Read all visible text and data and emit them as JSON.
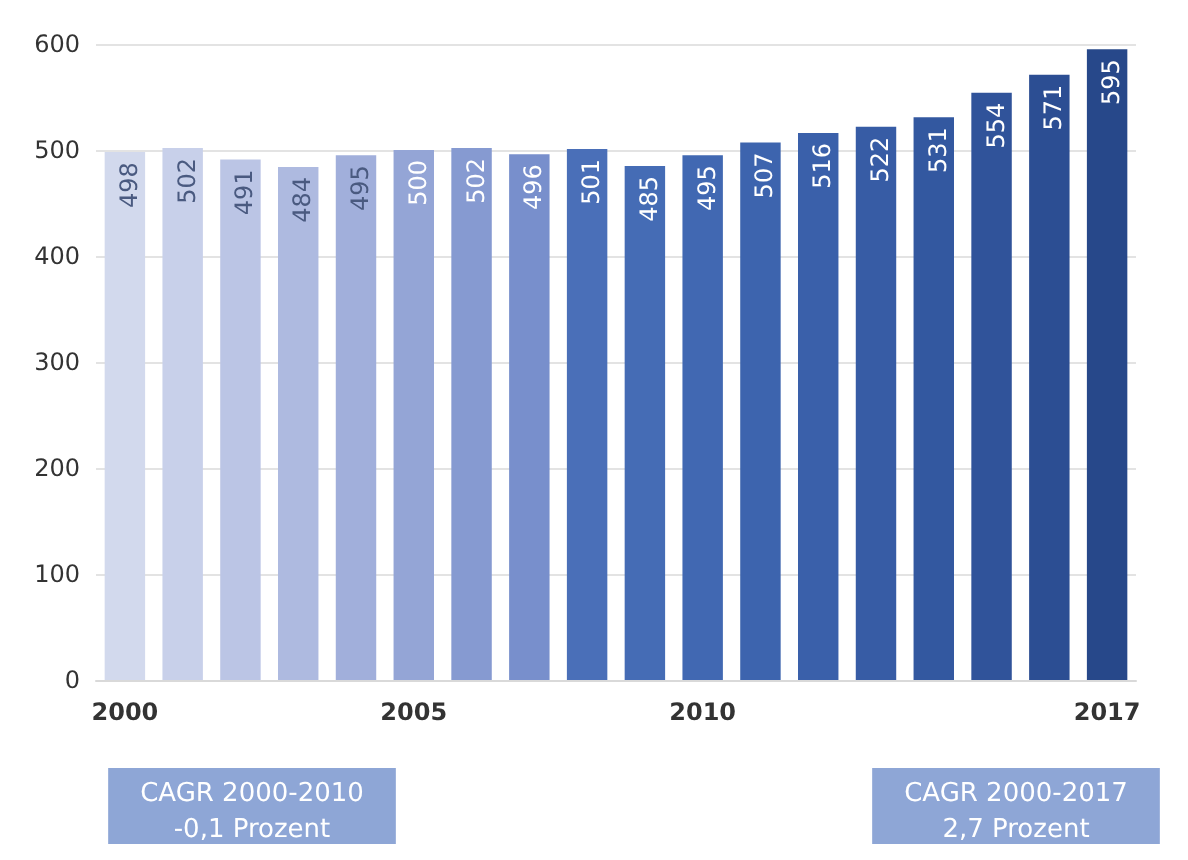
{
  "chart_data": {
    "type": "bar",
    "categories": [
      "2000",
      null,
      null,
      null,
      null,
      "2005",
      null,
      null,
      null,
      null,
      "2010",
      null,
      null,
      null,
      null,
      null,
      null,
      "2017"
    ],
    "values": [
      498,
      502,
      491,
      484,
      495,
      500,
      502,
      496,
      501,
      485,
      495,
      507,
      516,
      522,
      531,
      554,
      571,
      595
    ],
    "colors": [
      "#d2d9ed",
      "#c8d0ea",
      "#bbc5e5",
      "#aebae0",
      "#a1afdb",
      "#94a5d6",
      "#869ad1",
      "#788fcc",
      "#4a6fb8",
      "#456cb5",
      "#4168b2",
      "#3d64ae",
      "#3a60aa",
      "#375ca5",
      "#3358a0",
      "#30539a",
      "#2c4e93",
      "#27488a"
    ],
    "ylim": [
      0,
      600
    ],
    "yticks": [
      0,
      100,
      200,
      300,
      400,
      500,
      600
    ],
    "grid": "y",
    "data_labels": true,
    "annotations": [
      "CAGR 2000-2010\n-0,1 Prozent",
      "CAGR 2000-2017\n2,7 Prozent"
    ]
  }
}
